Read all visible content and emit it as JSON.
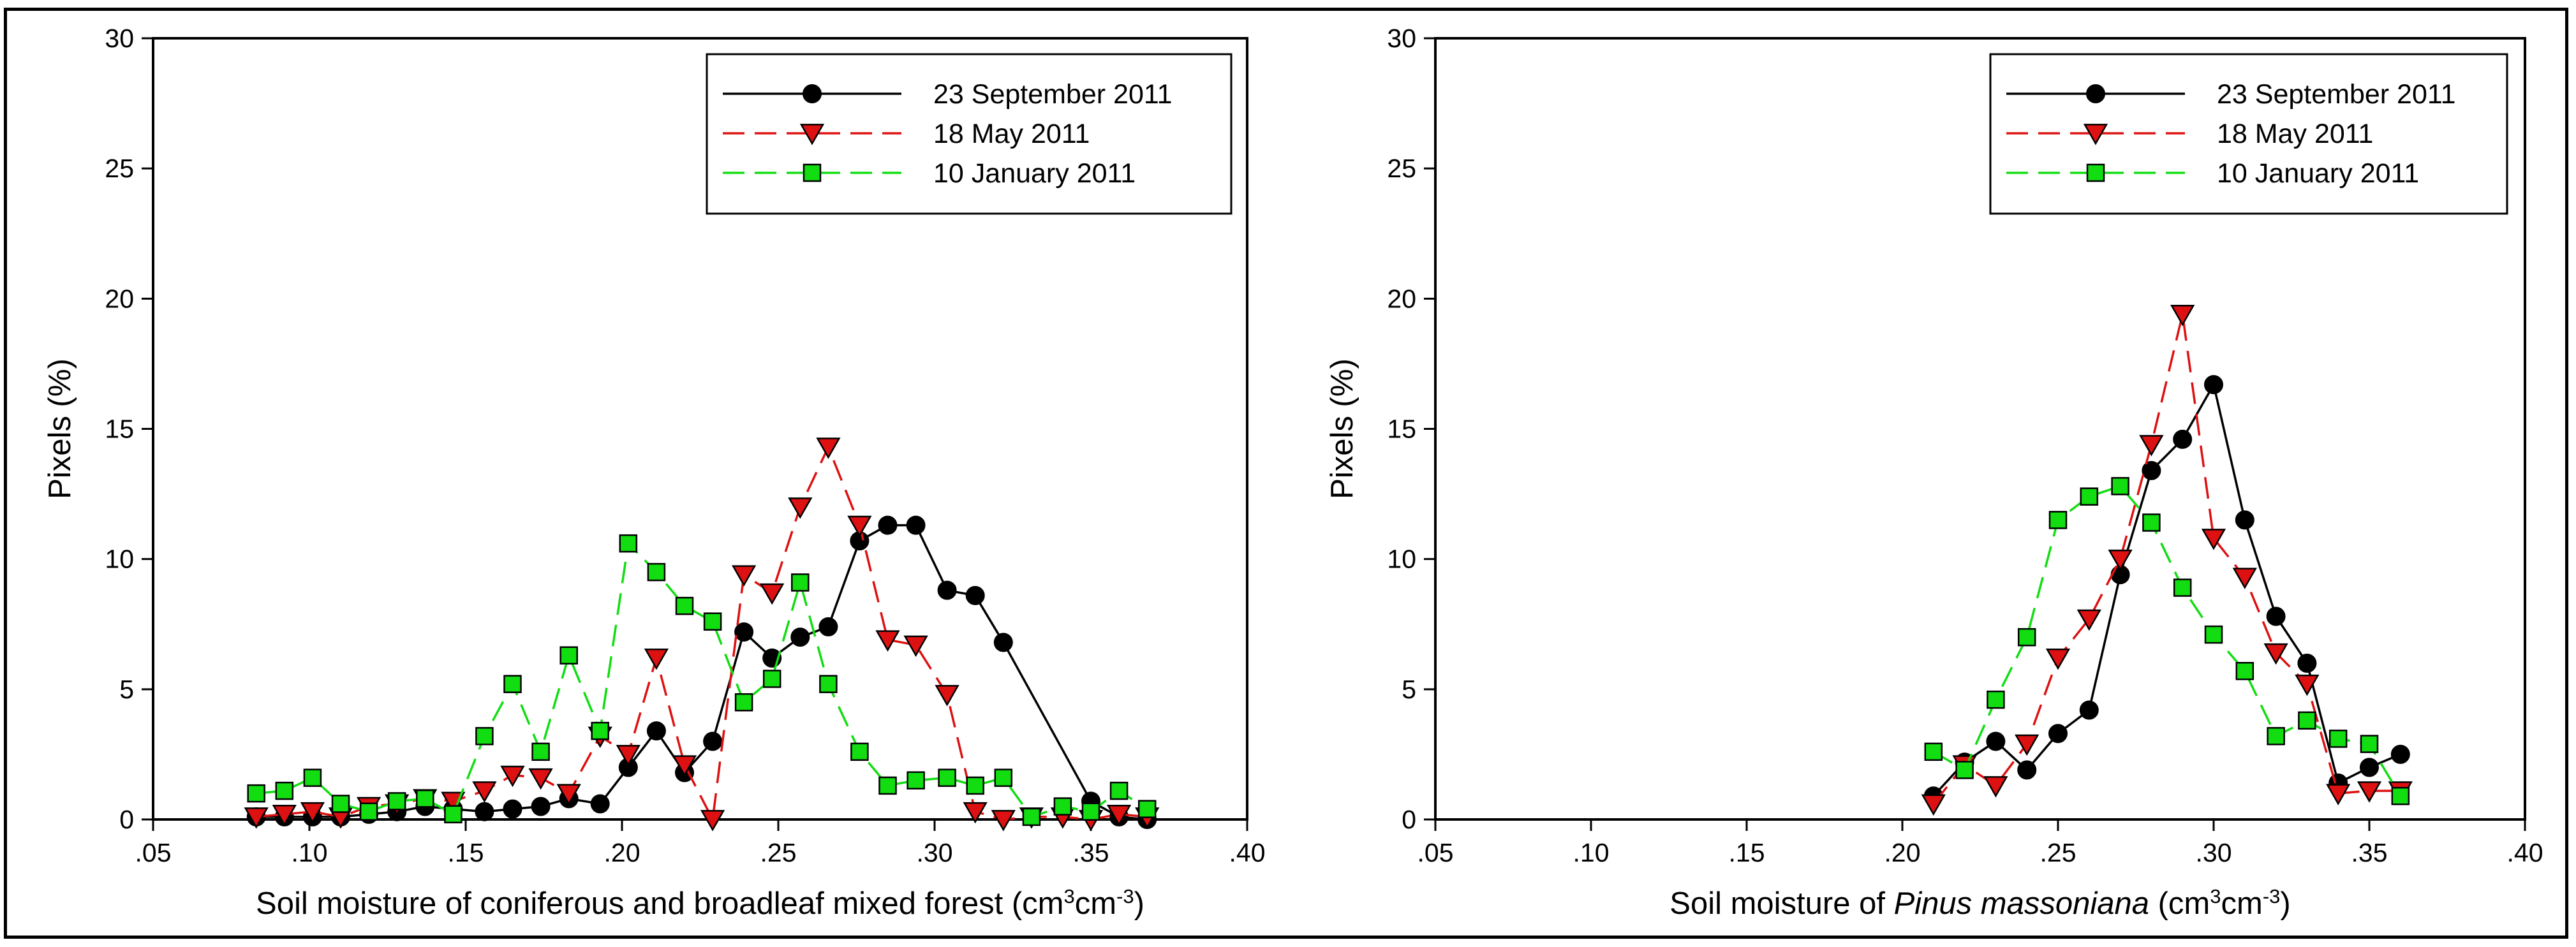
{
  "chart_data": [
    {
      "type": "line",
      "ylabel": "Pixels (%)",
      "xlabel_parts": [
        {
          "text": "Soil moisture of coniferous and broadleaf mixed forest (cm"
        },
        {
          "text": "3",
          "sup": true
        },
        {
          "text": "cm"
        },
        {
          "text": "-3",
          "sup": true
        },
        {
          "text": ")"
        }
      ],
      "xlim": [
        0.05,
        0.4
      ],
      "ylim": [
        0,
        30
      ],
      "xticks": [
        0.05,
        0.1,
        0.15,
        0.2,
        0.25,
        0.3,
        0.35,
        0.4
      ],
      "xtick_labels": [
        ".05",
        ".10",
        ".15",
        ".20",
        ".25",
        ".30",
        ".35",
        ".40"
      ],
      "yticks": [
        0,
        5,
        10,
        15,
        20,
        25,
        30
      ],
      "ytick_labels": [
        "0",
        "5",
        "10",
        "15",
        "20",
        "25",
        "30"
      ],
      "legend_position": "top-right",
      "series": [
        {
          "name": "23 September 2011",
          "color": "#000000",
          "marker": "circle",
          "dash": "solid",
          "x": [
            0.083,
            0.092,
            0.101,
            0.11,
            0.119,
            0.128,
            0.137,
            0.146,
            0.156,
            0.165,
            0.174,
            0.183,
            0.193,
            0.202,
            0.211,
            0.22,
            0.229,
            0.239,
            0.248,
            0.257,
            0.266,
            0.276,
            0.285,
            0.294,
            0.304,
            0.313,
            0.322,
            0.35,
            0.359,
            0.368
          ],
          "y": [
            0.1,
            0.1,
            0.1,
            0.1,
            0.2,
            0.3,
            0.5,
            0.4,
            0.3,
            0.4,
            0.5,
            0.8,
            0.6,
            2.0,
            3.4,
            1.8,
            3.0,
            7.2,
            6.2,
            7.0,
            7.4,
            10.7,
            11.3,
            11.3,
            8.8,
            8.6,
            6.8,
            0.7,
            0.1,
            0.0
          ]
        },
        {
          "name": "18 May 2011",
          "color": "#dd1111",
          "marker": "triangle",
          "dash": "dash",
          "x": [
            0.083,
            0.092,
            0.101,
            0.11,
            0.119,
            0.128,
            0.137,
            0.146,
            0.156,
            0.165,
            0.174,
            0.183,
            0.193,
            0.202,
            0.211,
            0.22,
            0.229,
            0.239,
            0.248,
            0.257,
            0.266,
            0.276,
            0.285,
            0.294,
            0.304,
            0.313,
            0.322,
            0.331,
            0.341,
            0.35,
            0.359,
            0.368
          ],
          "y": [
            0.1,
            0.2,
            0.3,
            0.1,
            0.5,
            0.6,
            0.8,
            0.7,
            1.1,
            1.7,
            1.6,
            1.0,
            3.2,
            2.5,
            6.2,
            2.1,
            0.0,
            9.4,
            8.7,
            12.0,
            14.3,
            11.3,
            6.9,
            6.7,
            4.8,
            0.3,
            0.0,
            0.1,
            0.1,
            0.0,
            0.2,
            0.1
          ]
        },
        {
          "name": "10 January 2011",
          "color": "#11dd11",
          "marker": "square",
          "dash": "dash",
          "x": [
            0.083,
            0.092,
            0.101,
            0.11,
            0.119,
            0.128,
            0.137,
            0.146,
            0.156,
            0.165,
            0.174,
            0.183,
            0.193,
            0.202,
            0.211,
            0.22,
            0.229,
            0.239,
            0.248,
            0.257,
            0.266,
            0.276,
            0.285,
            0.294,
            0.304,
            0.313,
            0.322,
            0.331,
            0.341,
            0.35,
            0.359,
            0.368
          ],
          "y": [
            1.0,
            1.1,
            1.6,
            0.6,
            0.3,
            0.7,
            0.8,
            0.2,
            3.2,
            5.2,
            2.6,
            6.3,
            3.4,
            10.6,
            9.5,
            8.2,
            7.6,
            4.5,
            5.4,
            9.1,
            5.2,
            2.6,
            1.3,
            1.5,
            1.6,
            1.3,
            1.6,
            0.1,
            0.5,
            0.3,
            1.1,
            0.4
          ]
        }
      ]
    },
    {
      "type": "line",
      "ylabel": "Pixels (%)",
      "xlabel_parts": [
        {
          "text": "Soil moisture of "
        },
        {
          "text": "Pinus massoniana",
          "italic": true
        },
        {
          "text": " (cm"
        },
        {
          "text": "3",
          "sup": true
        },
        {
          "text": "cm"
        },
        {
          "text": "-3",
          "sup": true
        },
        {
          "text": ")"
        }
      ],
      "xlim": [
        0.05,
        0.4
      ],
      "ylim": [
        0,
        30
      ],
      "xticks": [
        0.05,
        0.1,
        0.15,
        0.2,
        0.25,
        0.3,
        0.35,
        0.4
      ],
      "xtick_labels": [
        ".05",
        ".10",
        ".15",
        ".20",
        ".25",
        ".30",
        ".35",
        ".40"
      ],
      "yticks": [
        0,
        5,
        10,
        15,
        20,
        25,
        30
      ],
      "ytick_labels": [
        "0",
        "5",
        "10",
        "15",
        "20",
        "25",
        "30"
      ],
      "legend_position": "top-right",
      "series": [
        {
          "name": "23 September 2011",
          "color": "#000000",
          "marker": "circle",
          "dash": "solid",
          "x": [
            0.21,
            0.22,
            0.23,
            0.24,
            0.25,
            0.26,
            0.27,
            0.28,
            0.29,
            0.3,
            0.31,
            0.32,
            0.33,
            0.34,
            0.35,
            0.36
          ],
          "y": [
            0.9,
            2.2,
            3.0,
            1.9,
            3.3,
            4.2,
            9.4,
            13.4,
            14.6,
            16.7,
            11.5,
            7.8,
            6.0,
            1.4,
            2.0,
            2.5
          ]
        },
        {
          "name": "18 May 2011",
          "color": "#dd1111",
          "marker": "triangle",
          "dash": "dash",
          "x": [
            0.21,
            0.22,
            0.23,
            0.24,
            0.25,
            0.26,
            0.27,
            0.28,
            0.29,
            0.3,
            0.31,
            0.32,
            0.33,
            0.34,
            0.35,
            0.36
          ],
          "y": [
            0.6,
            2.1,
            1.3,
            2.9,
            6.2,
            7.7,
            10.0,
            14.4,
            19.4,
            10.8,
            9.3,
            6.4,
            5.2,
            1.0,
            1.1,
            1.1
          ]
        },
        {
          "name": "10 January 2011",
          "color": "#11dd11",
          "marker": "square",
          "dash": "dash",
          "x": [
            0.21,
            0.22,
            0.23,
            0.24,
            0.25,
            0.26,
            0.27,
            0.28,
            0.29,
            0.3,
            0.31,
            0.32,
            0.33,
            0.34,
            0.35,
            0.36
          ],
          "y": [
            2.6,
            1.9,
            4.6,
            7.0,
            11.5,
            12.4,
            12.8,
            11.4,
            8.9,
            7.1,
            5.7,
            3.2,
            3.8,
            3.1,
            2.9,
            0.9
          ]
        }
      ]
    }
  ]
}
